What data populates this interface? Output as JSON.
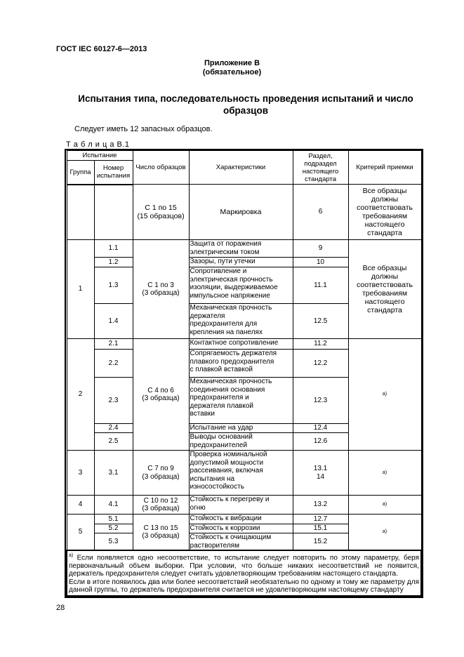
{
  "header": {
    "doc_id": "ГОСТ IEC 60127-6—2013",
    "annex": "Приложение В",
    "annex_status": "(обязательное)",
    "title": "Испытания типа, последовательность проведения испытаний и число образцов",
    "note": "Следует иметь 12 запасных образцов.",
    "table_caption": "Т а б л и ц а  В.1"
  },
  "table": {
    "headers": {
      "test": "Испытание",
      "group": "Группа",
      "number": "Номер\nиспытания",
      "count": "Число образцов",
      "characteristics": "Характеристики",
      "section": "Раздел,\nподраздел\nнастоящего\nстандарта",
      "criterion": "Критерий приемки"
    },
    "criterion_all": "Все образцы\nдолжны\nсоответствовать\nтребованиям\nнастоящего\nстандарта",
    "footnote_mark": "а)",
    "marking": {
      "count": "С 1 по 15\n(15 образцов)",
      "char": "Маркировка",
      "section": "6"
    },
    "g1": {
      "group": "1",
      "count": "С 1 по 3\n(3 образца)",
      "rows": [
        {
          "num": "1.1",
          "char": "Защита от поражения\nэлектрическим током",
          "section": "9"
        },
        {
          "num": "1.2",
          "char": "Зазоры, пути утечки",
          "section": "10"
        },
        {
          "num": "1.3",
          "char": "Сопротивление и\nэлектрическая прочность\nизоляции, выдерживаемое\nимпульсное напряжение",
          "section": "11.1"
        },
        {
          "num": "1.4",
          "char": "Механическая прочность\nдержателя\nпредохранителя для\nкрепления на панелях",
          "section": "12.5"
        }
      ]
    },
    "g2": {
      "group": "2",
      "count": "С 4 по 6\n(3 образца)",
      "rows": [
        {
          "num": "2.1",
          "char": "Контактное сопротивление",
          "section": "11.2"
        },
        {
          "num": "2.2",
          "char": "Сопрягаемость держателя\nплавкого предохранителя\nс плавкой вставкой",
          "section": "12.2"
        },
        {
          "num": "2.3",
          "char": "Механическая прочность\nсоединения основания\nпредохранителя и\nдержателя плавкой\nвставки",
          "section": "12.3"
        },
        {
          "num": "2.4",
          "char": "Испытание на удар",
          "section": "12.4"
        },
        {
          "num": "2.5",
          "char": "Выводы оснований\nпредохранителей",
          "section": "12.6"
        }
      ]
    },
    "g3": {
      "group": "3",
      "count": "С 7 по 9\n(3 образца)",
      "num": "3.1",
      "char": "Проверка номинальной\nдопустимой мощности\nрассеивания, включая\nиспытания на\nизносостойкость",
      "section": "13.1\n14"
    },
    "g4": {
      "group": "4",
      "count": "С 10 по 12\n(3 образца)",
      "num": "4.1",
      "char": "Стойкость к перегреву и\nогню",
      "section": "13.2"
    },
    "g5": {
      "group": "5",
      "count": "С 13 по 15\n(3 образца)",
      "rows": [
        {
          "num": "5.1",
          "char": "Стойкость к вибрации",
          "section": "12.7"
        },
        {
          "num": "5.2",
          "char": "Стойкость к коррозии",
          "section": "15.1"
        },
        {
          "num": "5.3",
          "char": "Стойкость к очищающим\nрастворителям",
          "section": "15.2"
        }
      ]
    },
    "footnote": {
      "mark": "а)",
      "p1": " Если появляется одно несоответствие, то испытание следует повторить по этому параметру, беря первоначальный объем выборки. При условии, что больше никаких несоответствий не появится, держатель предохранителя следует считать удовлетворяющим требованиям настоящего стандарта.",
      "p2": "Если в итоге появилось два или более несоответствий необязательно по одному и тому же параметру для данной группы, то держатель предохранителя считается не удовлетворяющим настоящему стандарту"
    }
  },
  "page_number": "28"
}
